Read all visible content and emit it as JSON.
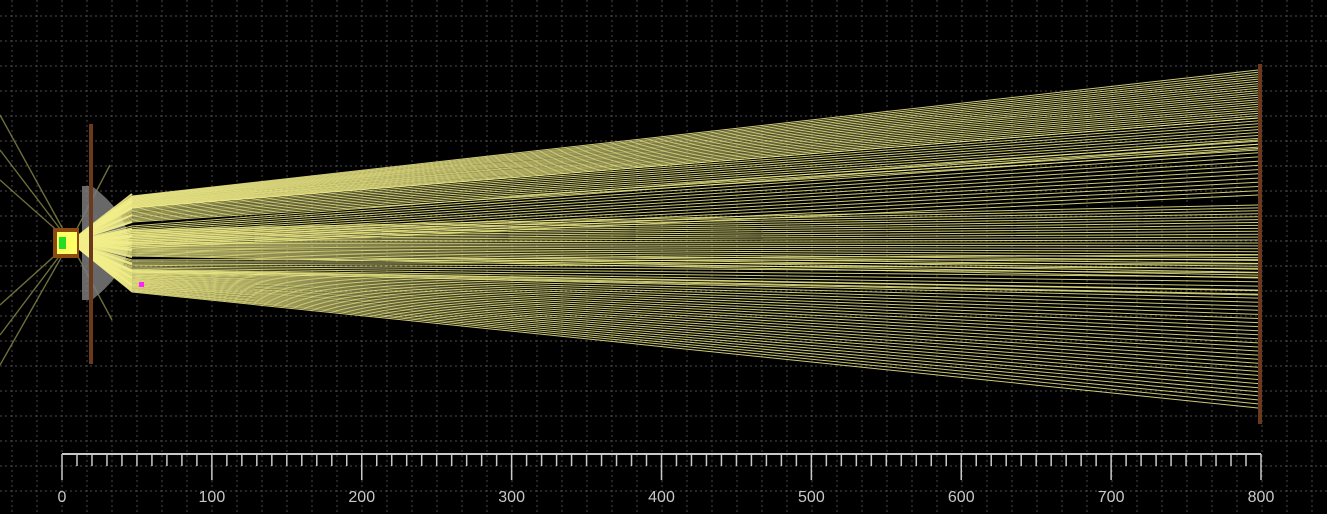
{
  "simulation": {
    "colors": {
      "background": "#000000",
      "grid": "#4a4a4a",
      "ray": "#f2ee8a",
      "ray_faint": "#8a8a4a",
      "blocker": "#6b3a1e",
      "lens": "#7a7a7a",
      "led_die": "#22dd22",
      "led_glow": "#ffff66",
      "led_body": "#8a4a10",
      "marker": "#ff22ff",
      "ruler": "#c8c8c8"
    },
    "elements": [
      {
        "name": "led-light-source",
        "type": "point_source"
      },
      {
        "name": "aperture-blocker",
        "type": "blocker"
      },
      {
        "name": "collimating-lens",
        "type": "lens"
      },
      {
        "name": "screen-blocker",
        "type": "blocker"
      },
      {
        "name": "observer-marker",
        "type": "point"
      }
    ]
  },
  "ruler": {
    "unit_spacing": 10,
    "labels": [
      "0",
      "100",
      "200",
      "300",
      "400",
      "500",
      "600",
      "700",
      "800"
    ]
  }
}
